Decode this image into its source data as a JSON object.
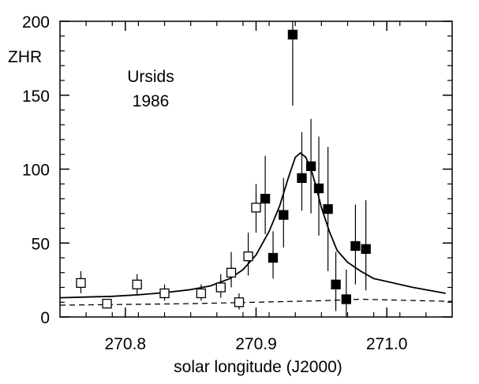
{
  "chart_data": {
    "type": "scatter",
    "xlabel": "solar longitude (J2000)",
    "ylabel": "ZHR",
    "xlim": [
      270.75,
      271.05
    ],
    "ylim": [
      0,
      200
    ],
    "x_ticks": [
      270.8,
      270.9,
      271.0
    ],
    "x_tick_labels": [
      "270.8",
      "270.9",
      "271.0"
    ],
    "y_ticks": [
      0,
      50,
      100,
      150,
      200
    ],
    "y_tick_labels": [
      "0",
      "50",
      "100",
      "150",
      "200"
    ],
    "annotations": [
      "Ursids",
      "1986"
    ],
    "grid": false,
    "series": [
      {
        "marker": "open-square",
        "points": [
          {
            "x": 270.766,
            "y": 23,
            "err_low": 16,
            "err_high": 31
          },
          {
            "x": 270.786,
            "y": 9,
            "err_low": 6,
            "err_high": 12
          },
          {
            "x": 270.809,
            "y": 22,
            "err_low": 15,
            "err_high": 29
          },
          {
            "x": 270.83,
            "y": 16,
            "err_low": 11,
            "err_high": 22
          },
          {
            "x": 270.858,
            "y": 16,
            "err_low": 11,
            "err_high": 22
          },
          {
            "x": 270.873,
            "y": 20,
            "err_low": 13,
            "err_high": 29
          },
          {
            "x": 270.881,
            "y": 30,
            "err_low": 20,
            "err_high": 44
          },
          {
            "x": 270.887,
            "y": 10,
            "err_low": 5,
            "err_high": 16
          },
          {
            "x": 270.894,
            "y": 41,
            "err_low": 28,
            "err_high": 57
          },
          {
            "x": 270.9,
            "y": 74,
            "err_low": 57,
            "err_high": 90
          }
        ]
      },
      {
        "marker": "filled-square",
        "points": [
          {
            "x": 270.907,
            "y": 80,
            "err_low": 56,
            "err_high": 109
          },
          {
            "x": 270.913,
            "y": 40,
            "err_low": 26,
            "err_high": 58
          },
          {
            "x": 270.921,
            "y": 69,
            "err_low": 47,
            "err_high": 94
          },
          {
            "x": 270.928,
            "y": 191,
            "err_low": 143,
            "err_high": 200
          },
          {
            "x": 270.935,
            "y": 94,
            "err_low": 72,
            "err_high": 125
          },
          {
            "x": 270.942,
            "y": 102,
            "err_low": 70,
            "err_high": 134
          },
          {
            "x": 270.948,
            "y": 87,
            "err_low": 55,
            "err_high": 122
          },
          {
            "x": 270.955,
            "y": 73,
            "err_low": 31,
            "err_high": 115
          },
          {
            "x": 270.961,
            "y": 22,
            "err_low": 4,
            "err_high": 44
          },
          {
            "x": 270.969,
            "y": 12,
            "err_low": 0,
            "err_high": 32
          },
          {
            "x": 270.976,
            "y": 48,
            "err_low": 22,
            "err_high": 76
          },
          {
            "x": 270.984,
            "y": 46,
            "err_low": 18,
            "err_high": 79
          }
        ]
      },
      {
        "marker": "solid-line",
        "x": [
          270.75,
          270.77,
          270.79,
          270.81,
          270.83,
          270.85,
          270.865,
          270.88,
          270.89,
          270.9,
          270.91,
          270.918,
          270.925,
          270.93,
          270.934,
          270.938,
          270.942,
          270.946,
          270.95,
          270.956,
          270.962,
          270.97,
          270.98,
          270.99,
          271.0,
          271.02,
          271.045
        ],
        "y": [
          13,
          13.5,
          14,
          15,
          16.5,
          18.5,
          21,
          26,
          32,
          42,
          58,
          75,
          95,
          108,
          111,
          108,
          100,
          88,
          74,
          58,
          45,
          37,
          31,
          26,
          24,
          20,
          16
        ]
      },
      {
        "marker": "dashed-line",
        "x": [
          270.75,
          270.8,
          270.85,
          270.9,
          270.95,
          270.98,
          271.05
        ],
        "y": [
          8,
          8.5,
          9,
          10,
          11,
          12,
          10.5
        ]
      }
    ]
  }
}
